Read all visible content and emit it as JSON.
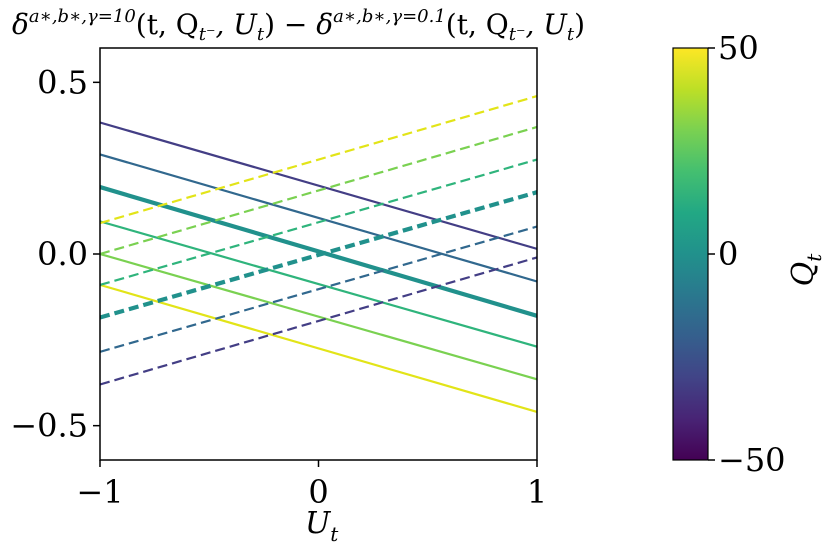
{
  "chart_data": {
    "type": "line",
    "title": "δ^{a∗,b∗,γ=10}(t, Q_{t⁻}, U_t) − δ^{a∗,b∗,γ=0.1}(t, Q_{t⁻}, U_t)",
    "title_parts": {
      "d1": "δ",
      "sup1": "a∗,b∗,γ=10",
      "args1": "(t, Q",
      "sub1": "t⁻",
      "args1b": ", U",
      "sub1b": "t",
      "close1": ")",
      "minus": " − ",
      "d2": "δ",
      "sup2": "a∗,b∗,γ=0.1",
      "args2": "(t, Q",
      "sub2": "t⁻",
      "args2b": ", U",
      "sub2b": "t",
      "close2": ")"
    },
    "xlabel": "U",
    "xlabel_sub": "t",
    "ylabel": "",
    "xlim": [
      -1,
      1
    ],
    "ylim": [
      -0.6,
      0.6
    ],
    "xticks": [
      {
        "value": -1,
        "label": "−1"
      },
      {
        "value": 0,
        "label": "0"
      },
      {
        "value": 1,
        "label": "1"
      }
    ],
    "yticks": [
      {
        "value": 0.5,
        "label": "0.5"
      },
      {
        "value": 0.0,
        "label": "0.0"
      },
      {
        "value": -0.5,
        "label": "−0.5"
      }
    ],
    "grid": false,
    "colorbar": {
      "label": "Q",
      "label_sub": "t",
      "range": [
        -50,
        50
      ],
      "ticks": [
        {
          "value": 50,
          "label": "50"
        },
        {
          "value": 0,
          "label": "0"
        },
        {
          "value": -50,
          "label": "−50"
        }
      ],
      "colormap": "viridis"
    },
    "series": [
      {
        "q": -40,
        "style": "solid",
        "color": "#433e85",
        "width": 2.2,
        "x": [
          -1,
          1
        ],
        "y": [
          0.383,
          0.015
        ]
      },
      {
        "q": -20,
        "style": "solid",
        "color": "#31688e",
        "width": 2.2,
        "x": [
          -1,
          1
        ],
        "y": [
          0.29,
          -0.08
        ]
      },
      {
        "q": 0,
        "style": "solid",
        "color": "#21918c",
        "width": 4.2,
        "x": [
          -1,
          1
        ],
        "y": [
          0.195,
          -0.18
        ]
      },
      {
        "q": 20,
        "style": "solid",
        "color": "#2fb47c",
        "width": 2.2,
        "x": [
          -1,
          1
        ],
        "y": [
          0.095,
          -0.27
        ]
      },
      {
        "q": 30,
        "style": "solid",
        "color": "#7ad151",
        "width": 2.2,
        "x": [
          -1,
          1
        ],
        "y": [
          0.0,
          -0.365
        ]
      },
      {
        "q": 50,
        "style": "solid",
        "color": "#e2e418",
        "width": 2.2,
        "x": [
          -1,
          1
        ],
        "y": [
          -0.09,
          -0.46
        ]
      },
      {
        "q": 50,
        "style": "dashed",
        "color": "#e2e418",
        "width": 2.2,
        "x": [
          -1,
          1
        ],
        "y": [
          0.09,
          0.46
        ]
      },
      {
        "q": 30,
        "style": "dashed",
        "color": "#7ad151",
        "width": 2.2,
        "x": [
          -1,
          1
        ],
        "y": [
          0.0,
          0.37
        ]
      },
      {
        "q": 20,
        "style": "dashed",
        "color": "#2fb47c",
        "width": 2.2,
        "x": [
          -1,
          1
        ],
        "y": [
          -0.09,
          0.275
        ]
      },
      {
        "q": 0,
        "style": "dashed",
        "color": "#21918c",
        "width": 4.2,
        "x": [
          -1,
          1
        ],
        "y": [
          -0.185,
          0.18
        ]
      },
      {
        "q": -20,
        "style": "dashed",
        "color": "#31688e",
        "width": 2.2,
        "x": [
          -1,
          1
        ],
        "y": [
          -0.285,
          0.08
        ]
      },
      {
        "q": -40,
        "style": "dashed",
        "color": "#433e85",
        "width": 2.2,
        "x": [
          -1,
          1
        ],
        "y": [
          -0.38,
          -0.01
        ]
      }
    ]
  }
}
